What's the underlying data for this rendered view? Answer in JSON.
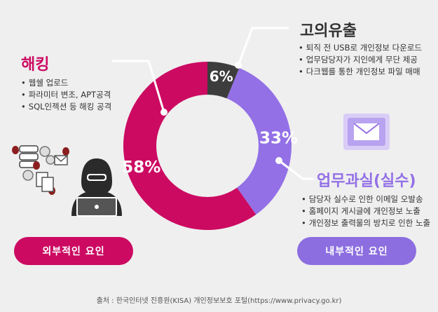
{
  "chart_data": {
    "type": "pie",
    "variant": "donut",
    "categories": [
      "고의유출",
      "업무과실(실수)",
      "해킹"
    ],
    "values": [
      6,
      33,
      58
    ],
    "value_labels": [
      "6%",
      "33%",
      "58%"
    ],
    "colors": [
      "#3d3d3d",
      "#9370e6",
      "#cc0a62"
    ]
  },
  "callouts": {
    "leak": {
      "title": "고의유출",
      "items": [
        "퇴직 전 USB로 개인정보 다운로드",
        "업무담당자가 지인에게 무단 제공",
        "다크웹를 통한 개인정보 파일 매매"
      ]
    },
    "hacking": {
      "title": "해킹",
      "items": [
        "웹쉘 업로드",
        "파라미터 변조, APT공격",
        "SQL인젝션 등 해킹 공격"
      ]
    },
    "mistake": {
      "title": "업무과실(실수)",
      "items": [
        "담당자 실수로 인한 이메일 오발송",
        "홈페이지 게시글에 개인정보 노출",
        "개인정보 출력물의 방치로 인한 노출"
      ]
    }
  },
  "factors": {
    "external": "외부적인 요인",
    "internal": "내부적인 요인"
  },
  "source": "출처 : 한국인터넷 진흥원(KISA) 개인정보보호 포털(https://www.privacy.go.kr)",
  "theme": {
    "hacking": "#cc0a62",
    "mistake": "#9370e6",
    "leak": "#3d3d3d",
    "internal_pill": "#8c6ee0"
  }
}
